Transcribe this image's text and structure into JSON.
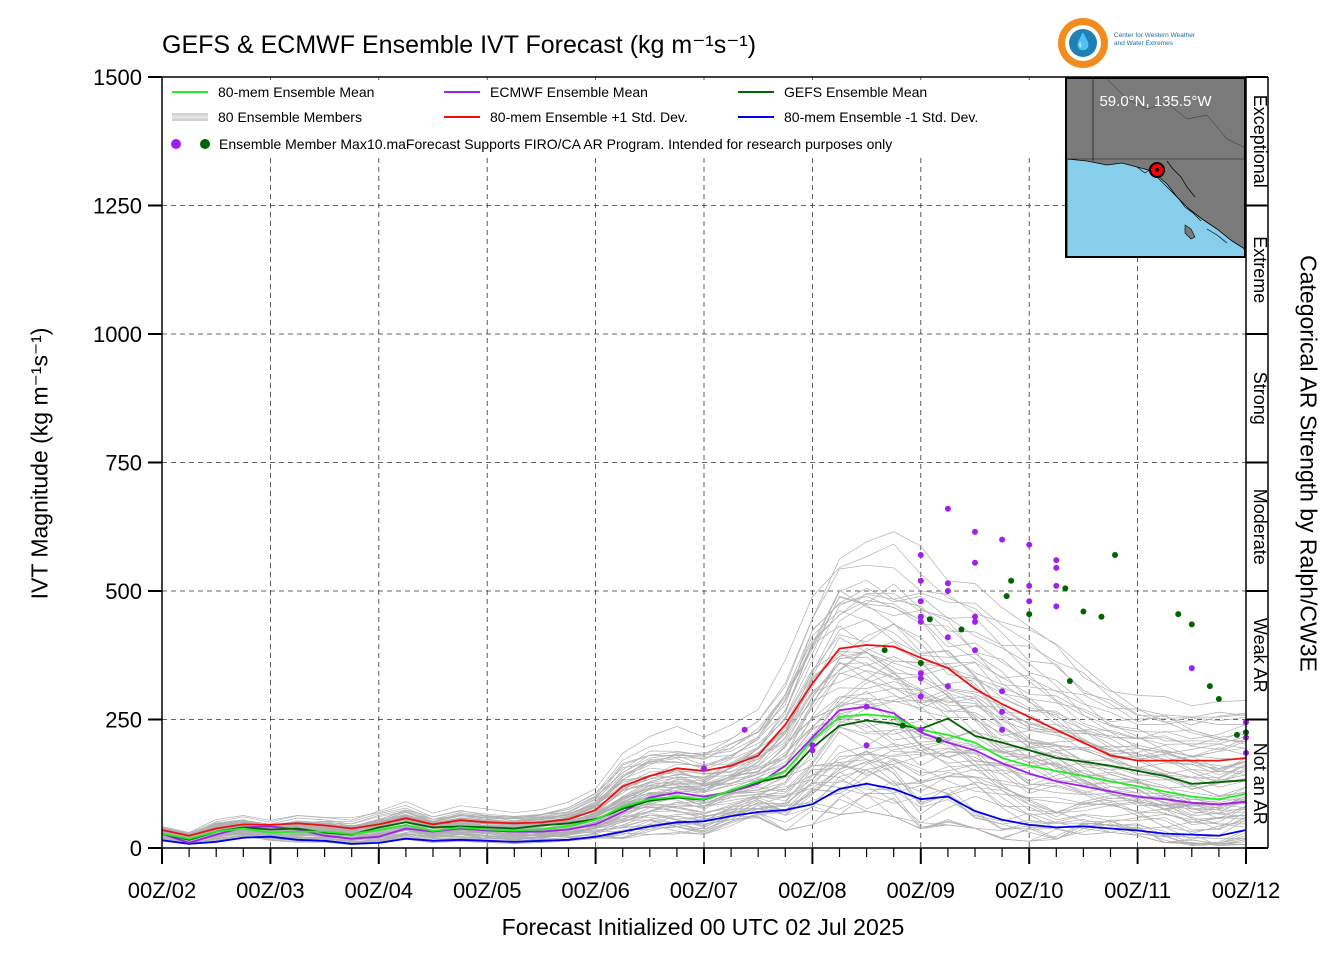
{
  "header": {
    "title": "GEFS & ECMWF Ensemble IVT Forecast (kg m⁻¹s⁻¹)",
    "logo_line1": "Center for Western Weather",
    "logo_line2": "and Water Extremes"
  },
  "inset_map": {
    "location": "59.0°N, 135.5°W"
  },
  "chart_data": {
    "type": "line",
    "title": "GEFS & ECMWF Ensemble IVT Forecast (kg m⁻¹s⁻¹)",
    "xlabel": "Forecast Initialized 00 UTC 02 Jul 2025",
    "ylabel": "IVT Magnitude (kg m⁻¹s⁻¹)",
    "right_label": "Categorical AR Strength by Ralph/CW3E",
    "ylim": [
      0,
      1500
    ],
    "xlim": [
      0,
      240
    ],
    "y_ticks": [
      0,
      250,
      500,
      750,
      1000,
      1250,
      1500
    ],
    "y_tick_labels": [
      "0",
      "250",
      "500",
      "750",
      "1000",
      "1250",
      "1500"
    ],
    "x_ticks": [
      0,
      24,
      48,
      72,
      96,
      120,
      144,
      168,
      192,
      216,
      240
    ],
    "x_tick_labels": [
      "00Z/02",
      "00Z/03",
      "00Z/04",
      "00Z/05",
      "00Z/06",
      "00Z/07",
      "00Z/08",
      "00Z/09",
      "00Z/10",
      "00Z/11",
      "00Z/12"
    ],
    "x_units": "forecast hours from 00 UTC 02 Jul 2025",
    "grid": true,
    "legend_placement": "top-left",
    "legend": [
      {
        "label": "80-mem Ensemble Mean",
        "color": "#22ee22"
      },
      {
        "label": "ECMWF Ensemble Mean",
        "color": "#a020f0"
      },
      {
        "label": "GEFS Ensemble Mean",
        "color": "#006400"
      },
      {
        "label": "80 Ensemble Members",
        "color": "#aaaaaa"
      },
      {
        "label": "80-mem Ensemble +1 Std. Dev.",
        "color": "#ee1111"
      },
      {
        "label": "80-mem Ensemble -1 Std. Dev.",
        "color": "#0000ee"
      }
    ],
    "legend_max_text": "Ensemble Member Max",
    "legend_note": "10.maForecast Supports FIRO/CA AR Program. Intended for research purposes only",
    "categories": [
      {
        "label": "Not an AR",
        "range": [
          0,
          250
        ]
      },
      {
        "label": "Weak AR",
        "range": [
          250,
          500
        ]
      },
      {
        "label": "Moderate",
        "range": [
          500,
          750
        ]
      },
      {
        "label": "Strong",
        "range": [
          750,
          1000
        ]
      },
      {
        "label": "Extreme",
        "range": [
          1000,
          1250
        ]
      },
      {
        "label": "Exceptional",
        "range": [
          1250,
          1500
        ]
      }
    ],
    "x": [
      0,
      6,
      12,
      18,
      24,
      30,
      36,
      42,
      48,
      54,
      60,
      66,
      72,
      78,
      84,
      90,
      96,
      102,
      108,
      114,
      120,
      126,
      132,
      138,
      144,
      150,
      156,
      162,
      168,
      174,
      180,
      186,
      192,
      198,
      204,
      210,
      216,
      222,
      228,
      234,
      240
    ],
    "series": [
      {
        "name": "80-mem Ensemble Mean",
        "color": "#22ee22",
        "values": [
          28,
          18,
          32,
          38,
          30,
          32,
          32,
          27,
          35,
          45,
          33,
          40,
          36,
          34,
          36,
          42,
          55,
          80,
          95,
          100,
          95,
          112,
          130,
          150,
          210,
          255,
          260,
          255,
          230,
          220,
          205,
          175,
          160,
          150,
          140,
          130,
          120,
          110,
          100,
          95,
          105
        ]
      },
      {
        "name": "ECMWF Ensemble Mean",
        "color": "#a020f0",
        "values": [
          28,
          10,
          26,
          40,
          42,
          36,
          24,
          18,
          22,
          38,
          32,
          38,
          34,
          32,
          32,
          36,
          46,
          70,
          98,
          108,
          100,
          110,
          125,
          160,
          215,
          268,
          275,
          262,
          225,
          205,
          190,
          165,
          145,
          130,
          120,
          110,
          100,
          95,
          88,
          85,
          90
        ]
      },
      {
        "name": "GEFS Ensemble Mean",
        "color": "#006400",
        "values": [
          28,
          16,
          32,
          40,
          36,
          38,
          30,
          26,
          40,
          50,
          40,
          42,
          40,
          38,
          44,
          48,
          56,
          76,
          92,
          98,
          94,
          112,
          128,
          140,
          195,
          238,
          248,
          242,
          232,
          252,
          218,
          205,
          190,
          175,
          168,
          160,
          150,
          140,
          125,
          128,
          132
        ]
      },
      {
        "name": "80-mem Ensemble +1 Std. Dev.",
        "color": "#ee1111",
        "values": [
          35,
          24,
          38,
          46,
          45,
          48,
          44,
          38,
          46,
          58,
          46,
          54,
          50,
          48,
          50,
          56,
          74,
          120,
          140,
          155,
          150,
          160,
          180,
          240,
          320,
          388,
          395,
          392,
          370,
          350,
          310,
          280,
          255,
          230,
          205,
          180,
          170,
          170,
          170,
          170,
          175
        ]
      },
      {
        "name": "80-mem Ensemble -1 Std. Dev.",
        "color": "#0000ee",
        "values": [
          15,
          8,
          12,
          20,
          22,
          16,
          14,
          8,
          10,
          18,
          14,
          16,
          14,
          12,
          14,
          16,
          22,
          32,
          42,
          50,
          52,
          62,
          70,
          74,
          85,
          115,
          125,
          115,
          95,
          100,
          72,
          55,
          45,
          40,
          42,
          38,
          34,
          28,
          26,
          24,
          35
        ]
      }
    ],
    "ecmwf_member_max": {
      "color": "#a020f0",
      "points": [
        [
          -6,
          10
        ],
        [
          120,
          155
        ],
        [
          129,
          230
        ],
        [
          144,
          190
        ],
        [
          144,
          200
        ],
        [
          156,
          200
        ],
        [
          156,
          275
        ],
        [
          168,
          570
        ],
        [
          168,
          520
        ],
        [
          168,
          480
        ],
        [
          168,
          450
        ],
        [
          168,
          440
        ],
        [
          168,
          340
        ],
        [
          168,
          330
        ],
        [
          168,
          295
        ],
        [
          168,
          230
        ],
        [
          174,
          660
        ],
        [
          174,
          515
        ],
        [
          174,
          500
        ],
        [
          174,
          410
        ],
        [
          174,
          315
        ],
        [
          180,
          615
        ],
        [
          180,
          555
        ],
        [
          180,
          450
        ],
        [
          180,
          440
        ],
        [
          180,
          385
        ],
        [
          186,
          600
        ],
        [
          186,
          305
        ],
        [
          186,
          265
        ],
        [
          186,
          230
        ],
        [
          192,
          590
        ],
        [
          192,
          510
        ],
        [
          192,
          480
        ],
        [
          198,
          560
        ],
        [
          198,
          545
        ],
        [
          198,
          510
        ],
        [
          198,
          470
        ],
        [
          228,
          350
        ],
        [
          240,
          245
        ],
        [
          240,
          215
        ],
        [
          240,
          185
        ]
      ]
    },
    "gefs_member_max": {
      "color": "#006400",
      "points": [
        [
          -6,
          10
        ],
        [
          160,
          385
        ],
        [
          164,
          238
        ],
        [
          168,
          360
        ],
        [
          170,
          445
        ],
        [
          172,
          210
        ],
        [
          177,
          425
        ],
        [
          187,
          490
        ],
        [
          188,
          520
        ],
        [
          192,
          455
        ],
        [
          200,
          505
        ],
        [
          201,
          325
        ],
        [
          204,
          460
        ],
        [
          208,
          450
        ],
        [
          211,
          570
        ],
        [
          225,
          455
        ],
        [
          228,
          435
        ],
        [
          232,
          315
        ],
        [
          234,
          290
        ],
        [
          238,
          220
        ],
        [
          240,
          225
        ]
      ]
    },
    "members_count": 80
  }
}
